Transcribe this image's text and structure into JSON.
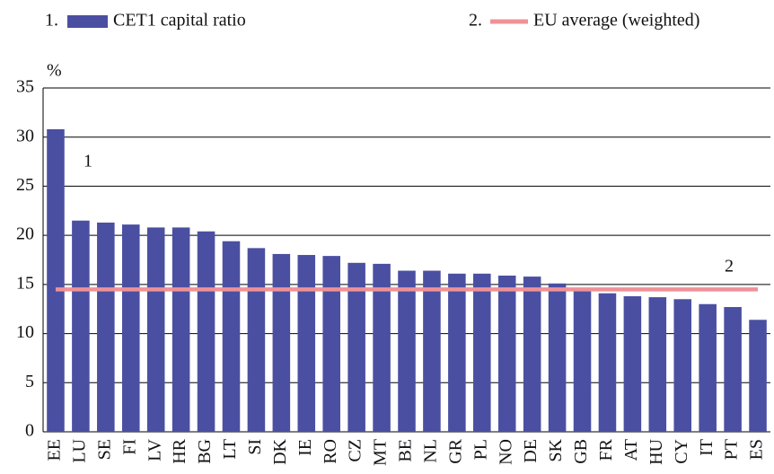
{
  "chart_data": {
    "type": "bar",
    "y_unit": "%",
    "legend_numbers": [
      "1.",
      "2."
    ],
    "annotations": [
      "1",
      "2"
    ],
    "categories": [
      "EE",
      "LU",
      "SE",
      "FI",
      "LV",
      "HR",
      "BG",
      "LT",
      "SI",
      "DK",
      "IE",
      "RO",
      "CZ",
      "MT",
      "BE",
      "NL",
      "GR",
      "PL",
      "NO",
      "DE",
      "SK",
      "GB",
      "FR",
      "AT",
      "HU",
      "CY",
      "IT",
      "PT",
      "ES"
    ],
    "series": [
      {
        "name": "CET1 capital ratio",
        "type": "bar",
        "color": "#4b4fa2",
        "values": [
          30.8,
          21.5,
          21.3,
          21.1,
          20.8,
          20.8,
          20.4,
          19.4,
          18.7,
          18.1,
          18.0,
          17.9,
          17.2,
          17.1,
          16.4,
          16.4,
          16.1,
          16.1,
          15.9,
          15.8,
          15.1,
          14.6,
          14.1,
          13.8,
          13.7,
          13.5,
          13.0,
          12.7,
          11.4
        ]
      },
      {
        "name": "EU average (weighted)",
        "type": "line",
        "color": "#ef9197",
        "values": [
          14.5,
          14.5,
          14.5,
          14.5,
          14.5,
          14.5,
          14.5,
          14.5,
          14.5,
          14.5,
          14.5,
          14.5,
          14.5,
          14.5,
          14.5,
          14.5,
          14.5,
          14.5,
          14.5,
          14.5,
          14.5,
          14.5,
          14.5,
          14.5,
          14.5,
          14.5,
          14.5,
          14.5,
          14.5
        ]
      }
    ],
    "ylim": [
      0,
      35
    ],
    "yticks": [
      0,
      5,
      10,
      15,
      20,
      25,
      30,
      35
    ],
    "grid": true
  }
}
